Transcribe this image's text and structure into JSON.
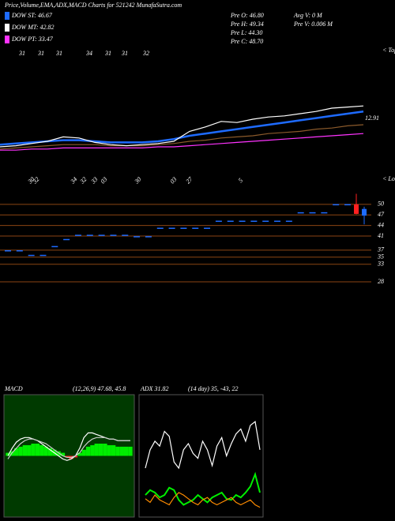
{
  "header": {
    "title": "Price,Volume,EMA,ADX,MACD Charts for 521242 MunafaSutra.com",
    "legend": [
      {
        "label": "DOW ST: 46.67",
        "color": "#1e6bff"
      },
      {
        "label": "DOW MT: 42.82",
        "color": "#ffffff"
      },
      {
        "label": "DOW PT: 33.47",
        "color": "#ff33ff"
      }
    ],
    "stats": [
      "Pre  O: 46.80",
      "Pre  H: 49.34",
      "Pre  L: 44.30",
      "Pre  C: 48.70",
      "Avg V: 0  M",
      "Pre  V: 0.006  M"
    ]
  },
  "chart_data": [
    {
      "type": "line",
      "label": "< Tops",
      "annotation": "12.91",
      "top_labels": [
        "31",
        "31",
        "31",
        "34",
        "31",
        "31",
        "32"
      ],
      "ylim": [
        0,
        100
      ],
      "series": [
        {
          "color": "#8b5a2b",
          "values": [
            8,
            9,
            10,
            11,
            12,
            12,
            12,
            11,
            11,
            11,
            12,
            13,
            15,
            16,
            18,
            19,
            20,
            22,
            23,
            24,
            26,
            27,
            29,
            30
          ]
        },
        {
          "color": "#ff33ff",
          "values": [
            7,
            7,
            8,
            8,
            9,
            9,
            9,
            9,
            9,
            9,
            10,
            10,
            11,
            12,
            13,
            14,
            15,
            16,
            17,
            18,
            19,
            20,
            21,
            22
          ]
        },
        {
          "color": "#1e6bff",
          "values": [
            12,
            13,
            14,
            15,
            16,
            16,
            15,
            14,
            14,
            14,
            15,
            17,
            20,
            22,
            24,
            26,
            28,
            30,
            32,
            34,
            36,
            38,
            40,
            42
          ]
        },
        {
          "color": "#ffffff",
          "values": [
            10,
            11,
            13,
            15,
            19,
            18,
            14,
            12,
            11,
            12,
            13,
            15,
            24,
            28,
            33,
            32,
            35,
            37,
            38,
            40,
            42,
            45,
            46,
            47
          ]
        }
      ]
    },
    {
      "type": "candlestick",
      "label": "< Lows",
      "date_labels": [
        "30",
        "32",
        "34",
        "32",
        "33",
        "03",
        "30",
        "03",
        "27",
        "5"
      ],
      "ylim": [
        20.6,
        57.6
      ],
      "yticks": [
        50,
        47,
        44,
        41,
        37,
        35,
        33,
        28
      ],
      "color": "#1e6bff",
      "values": [
        36.8,
        36.8,
        35.5,
        35.5,
        38,
        40,
        41.2,
        41.2,
        41.2,
        41.2,
        41.2,
        40.8,
        40.8,
        43.2,
        43.2,
        43.2,
        43.2,
        43.2,
        45.2,
        45.2,
        45.2,
        45.2,
        45.2,
        45.2,
        45.2,
        47.6,
        47.6,
        47.6,
        49.9,
        49.9
      ],
      "candles": [
        {
          "open": 50,
          "high": 53,
          "low": 47.2,
          "close": 47.3,
          "color": "#ff2020"
        },
        {
          "open": 46.8,
          "high": 49.34,
          "low": 44.3,
          "close": 48.7,
          "color": "#1e6bff"
        }
      ]
    },
    {
      "type": "macd",
      "title": "MACD",
      "subtitle": "(12,26,9) 47.68, 45.8",
      "ylim": [
        -40,
        40
      ],
      "up_color": "#00ee00",
      "down_color": "#ff2020",
      "histogram": [
        2,
        3,
        5,
        6,
        7,
        7,
        8,
        8,
        7,
        6,
        5,
        4,
        3,
        2,
        -1,
        -2,
        -1,
        2,
        4,
        6,
        7,
        8,
        8,
        8,
        7,
        7,
        6,
        6,
        6,
        6
      ],
      "series": [
        {
          "color": "#ffffff",
          "values": [
            0,
            5,
            9,
            11,
            12,
            12,
            11,
            10,
            8,
            6,
            4,
            2,
            0,
            -2,
            -3,
            -2,
            0,
            5,
            12,
            15,
            15,
            14,
            13,
            12,
            11,
            11,
            10,
            10,
            10,
            10
          ]
        },
        {
          "color": "#cccccc",
          "values": [
            -2,
            2,
            5,
            8,
            10,
            11,
            11,
            10,
            9,
            8,
            6,
            4,
            2,
            0,
            -1,
            -1,
            0,
            2,
            6,
            9,
            11,
            12,
            12,
            12,
            11,
            11,
            10,
            10,
            10,
            10
          ]
        }
      ]
    },
    {
      "type": "adx",
      "title": "ADX 31.82",
      "subtitle": "(14 day) 35, -43, 22",
      "ylim": [
        0,
        100
      ],
      "series": [
        {
          "color": "#ffffff",
          "values": [
            40,
            55,
            62,
            58,
            70,
            66,
            45,
            40,
            55,
            60,
            52,
            48,
            62,
            55,
            42,
            58,
            65,
            50,
            60,
            68,
            72,
            62,
            75,
            78,
            55
          ]
        },
        {
          "color": "#00ee00",
          "values": [
            18,
            22,
            20,
            16,
            18,
            24,
            22,
            14,
            10,
            12,
            14,
            18,
            15,
            12,
            16,
            18,
            20,
            15,
            14,
            18,
            16,
            20,
            25,
            35,
            20
          ]
        },
        {
          "color": "#ff8c00",
          "values": [
            15,
            12,
            18,
            14,
            12,
            10,
            16,
            20,
            18,
            15,
            12,
            10,
            14,
            16,
            12,
            10,
            12,
            14,
            16,
            12,
            10,
            12,
            14,
            10,
            8
          ]
        }
      ]
    }
  ]
}
